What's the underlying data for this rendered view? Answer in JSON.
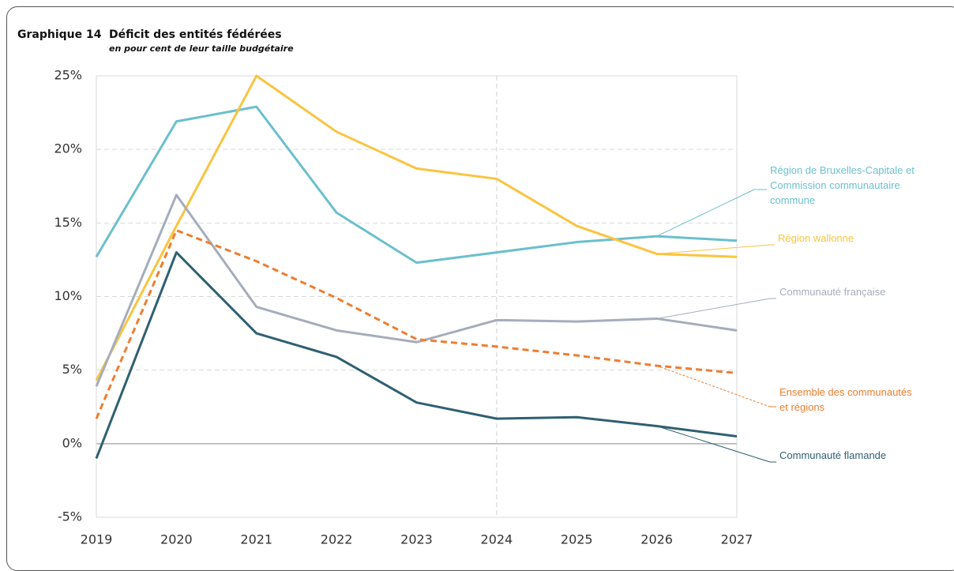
{
  "chart_data": {
    "type": "line",
    "label": "Graphique 14",
    "title": "Déficit des entités fédérées",
    "subtitle": "en pour cent de leur taille budgétaire",
    "x": [
      2019,
      2020,
      2021,
      2022,
      2023,
      2024,
      2025,
      2026,
      2027
    ],
    "xlim": [
      2019,
      2027
    ],
    "xticks": [
      2019,
      2020,
      2021,
      2022,
      2023,
      2024,
      2025,
      2026,
      2027
    ],
    "ylim": [
      -5,
      25
    ],
    "yticks": [
      {
        "value": -5,
        "label": "-5%"
      },
      {
        "value": 0,
        "label": "0%"
      },
      {
        "value": 5,
        "label": "5%"
      },
      {
        "value": 10,
        "label": "10%"
      },
      {
        "value": 15,
        "label": "15%"
      },
      {
        "value": 20,
        "label": "20%"
      },
      {
        "value": 25,
        "label": "25%"
      }
    ],
    "grid": true,
    "vertical_line_x": 2024,
    "series": [
      {
        "name": "Région de Bruxelles-Capitale et Commission communautaire commune",
        "color": "#6bbfcc",
        "values": [
          12.7,
          21.9,
          22.9,
          15.7,
          12.3,
          13.0,
          13.7,
          14.1,
          13.8
        ]
      },
      {
        "name": "Région wallonne",
        "color": "#f9c440",
        "values": [
          4.3,
          14.8,
          25.0,
          21.2,
          18.7,
          18.0,
          14.8,
          12.9,
          12.7
        ]
      },
      {
        "name": "Communauté française",
        "color": "#a5adbb",
        "values": [
          3.9,
          16.9,
          9.3,
          7.7,
          6.9,
          8.4,
          8.3,
          8.5,
          7.7
        ]
      },
      {
        "name": "Ensemble des communautés et régions",
        "color": "#ee7d31",
        "dashed": true,
        "values": [
          1.7,
          14.5,
          12.4,
          9.9,
          7.1,
          6.6,
          6.0,
          5.3,
          4.8
        ]
      },
      {
        "name": "Communauté flamande",
        "color": "#2f6072",
        "values": [
          -1.0,
          13.0,
          7.5,
          5.9,
          2.8,
          1.7,
          1.8,
          1.2,
          0.5
        ]
      }
    ]
  }
}
